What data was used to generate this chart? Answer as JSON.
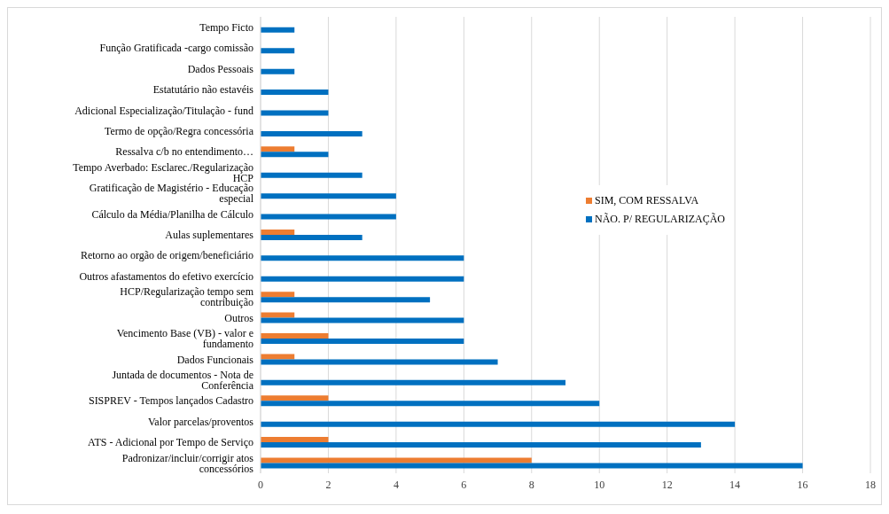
{
  "chart_data": {
    "type": "bar",
    "orientation": "horizontal",
    "categories": [
      "Tempo Ficto",
      "Função Gratificada -cargo comissão",
      "Dados Pessoais",
      "Estatutário não estavéis",
      "Adicional Especialização/Titulação - fund",
      "Termo de opção/Regra concessória",
      "Ressalva c/b no entendimento…",
      "Tempo Averbado: Esclarec./Regularização HCP",
      "Gratificação de Magistério - Educação especial",
      "Cálculo da Média/Planilha de Cálculo",
      "Aulas suplementares",
      "Retorno ao orgão de origem/beneficiário",
      "Outros afastamentos do efetivo exercício",
      "HCP/Regularização tempo sem contribuição",
      "Outros",
      "Vencimento Base (VB) - valor e fundamento",
      "Dados Funcionais",
      "Juntada de documentos - Nota de Conferência",
      "SISPREV - Tempos lançados Cadastro",
      "Valor parcelas/proventos",
      "ATS - Adicional por Tempo de Serviço",
      "Padronizar/incluir/corrigir atos concessórios"
    ],
    "series": [
      {
        "name": "SIM, COM RESSALVA",
        "color": "#ed7d31",
        "values": [
          null,
          null,
          null,
          null,
          null,
          null,
          1,
          null,
          null,
          null,
          1,
          null,
          null,
          1,
          1,
          2,
          1,
          null,
          2,
          null,
          2,
          8
        ]
      },
      {
        "name": "NÃO. P/ REGULARIZAÇÃO",
        "color": "#0070c0",
        "values": [
          1,
          1,
          1,
          2,
          2,
          3,
          2,
          3,
          4,
          4,
          3,
          6,
          6,
          5,
          6,
          6,
          7,
          9,
          10,
          14,
          13,
          16
        ]
      }
    ],
    "xlim": [
      0,
      18
    ],
    "xticks": [
      0,
      2,
      4,
      6,
      8,
      10,
      12,
      14,
      16,
      18
    ],
    "grid": "x",
    "legend": "right"
  }
}
